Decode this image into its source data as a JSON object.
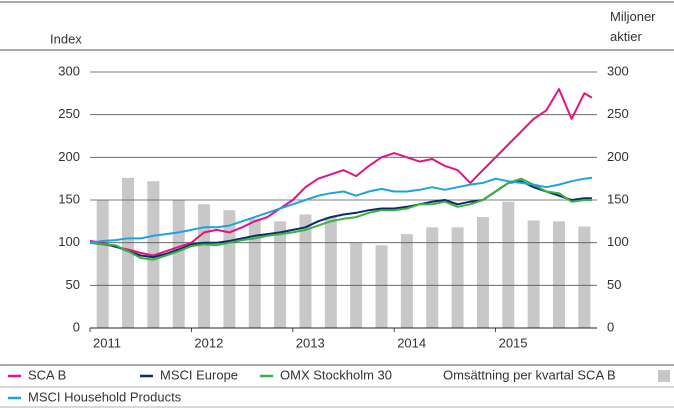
{
  "chart_data": {
    "type": "line",
    "ylabel": "Index",
    "y2label": "Miljoner aktier",
    "xlim": [
      2011,
      2016
    ],
    "xticks": [
      2011,
      2012,
      2013,
      2014,
      2015
    ],
    "ylim": [
      0,
      300
    ],
    "yticks": [
      0,
      50,
      100,
      150,
      200,
      250,
      300
    ],
    "y2lim": [
      0,
      300
    ],
    "y2ticks": [
      0,
      50,
      100,
      150,
      200,
      250,
      300
    ],
    "grid": true,
    "x": [
      2011,
      2011.125,
      2011.25,
      2011.375,
      2011.5,
      2011.625,
      2011.75,
      2011.875,
      2012,
      2012.125,
      2012.25,
      2012.375,
      2012.5,
      2012.625,
      2012.75,
      2012.875,
      2013,
      2013.125,
      2013.25,
      2013.375,
      2013.5,
      2013.625,
      2013.75,
      2013.875,
      2014,
      2014.125,
      2014.25,
      2014.375,
      2014.5,
      2014.625,
      2014.75,
      2014.875,
      2015,
      2015.125,
      2015.25,
      2015.375,
      2015.5,
      2015.625,
      2015.75,
      2015.875,
      2015.95
    ],
    "series": [
      {
        "name": "SCA B",
        "color": "#e0157f",
        "values": [
          102,
          100,
          95,
          92,
          88,
          85,
          90,
          95,
          100,
          112,
          115,
          112,
          118,
          125,
          130,
          140,
          150,
          165,
          175,
          180,
          185,
          178,
          190,
          200,
          205,
          200,
          195,
          198,
          190,
          185,
          170,
          185,
          200,
          215,
          230,
          245,
          255,
          280,
          245,
          275,
          270
        ]
      },
      {
        "name": "MSCI Europe",
        "color": "#0a2d6e",
        "values": [
          100,
          98,
          96,
          90,
          85,
          83,
          87,
          92,
          98,
          100,
          100,
          102,
          105,
          108,
          110,
          112,
          115,
          118,
          125,
          130,
          133,
          135,
          138,
          140,
          140,
          142,
          145,
          148,
          150,
          145,
          148,
          150,
          160,
          170,
          172,
          165,
          160,
          155,
          150,
          152,
          152
        ]
      },
      {
        "name": "OMX Stockholm 30",
        "color": "#3cb043",
        "values": [
          100,
          98,
          97,
          90,
          82,
          80,
          85,
          90,
          96,
          98,
          97,
          100,
          103,
          105,
          108,
          110,
          112,
          115,
          120,
          125,
          128,
          130,
          135,
          138,
          138,
          140,
          145,
          145,
          148,
          142,
          145,
          150,
          160,
          170,
          175,
          168,
          160,
          158,
          148,
          150,
          150
        ]
      },
      {
        "name": "Omsättning per kvartal SCA B",
        "type": "bar",
        "axis": "y2",
        "color": "#c8c8c8",
        "x": [
          2011.125,
          2011.375,
          2011.625,
          2011.875,
          2012.125,
          2012.375,
          2012.625,
          2012.875,
          2013.125,
          2013.375,
          2013.625,
          2013.875,
          2014.125,
          2014.375,
          2014.625,
          2014.875,
          2015.125,
          2015.375,
          2015.625,
          2015.875
        ],
        "values": [
          150,
          176,
          172,
          150,
          145,
          138,
          128,
          125,
          133,
          130,
          100,
          97,
          110,
          118,
          118,
          130,
          148,
          126,
          125,
          119
        ]
      },
      {
        "name": "MSCI Household Products",
        "color": "#1fa3e0",
        "values": [
          100,
          102,
          103,
          105,
          105,
          108,
          110,
          112,
          115,
          118,
          118,
          120,
          125,
          130,
          135,
          140,
          145,
          150,
          155,
          158,
          160,
          155,
          160,
          163,
          160,
          160,
          162,
          165,
          162,
          165,
          168,
          170,
          175,
          172,
          170,
          168,
          165,
          168,
          172,
          175,
          176
        ]
      }
    ]
  }
}
